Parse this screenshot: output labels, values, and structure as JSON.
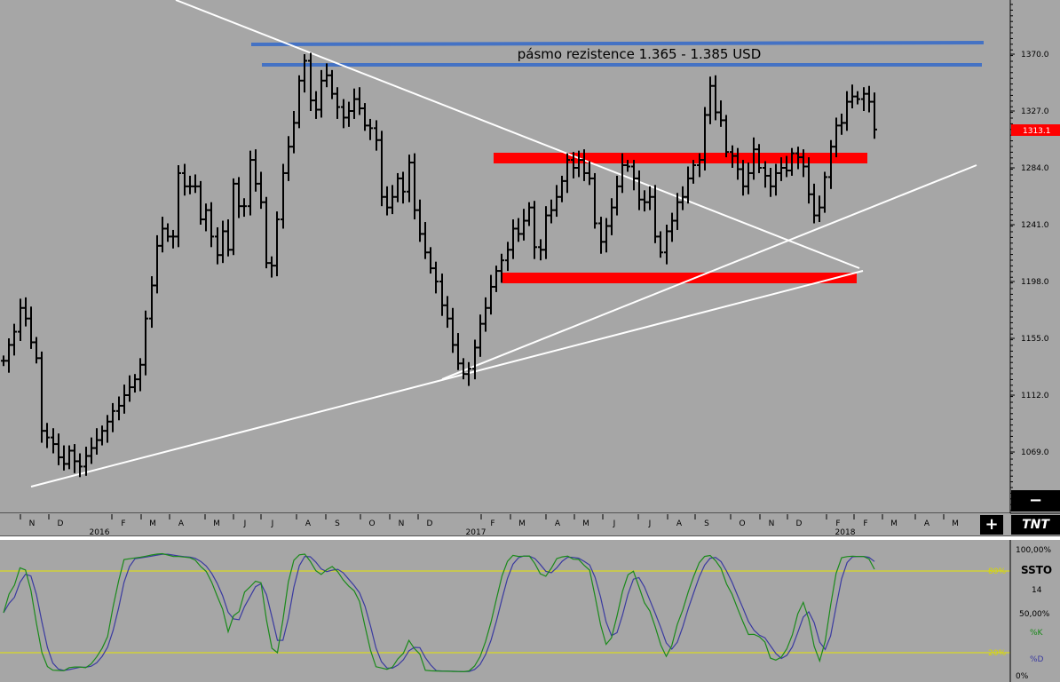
{
  "chart_data": {
    "type": "ohlc",
    "price_axis": {
      "ticks": [
        "1370.0",
        "1327.0",
        "1284.0",
        "1241.0",
        "1198.0",
        "1155.0",
        "1112.0",
        "1069.0"
      ],
      "tick_values": [
        1370,
        1327,
        1284,
        1241,
        1198,
        1155,
        1112,
        1069
      ],
      "current_price": "1313.1",
      "range": [
        1040,
        1410
      ]
    },
    "time_axis": {
      "months": [
        "N",
        "D",
        "F",
        "M",
        "A",
        "M",
        "J",
        "J",
        "A",
        "S",
        "O",
        "N",
        "D",
        "F",
        "M",
        "A",
        "M",
        "J",
        "J",
        "A",
        "S",
        "O",
        "N",
        "D",
        "F",
        "F",
        "M",
        "A",
        "M"
      ],
      "years": [
        "2016",
        "2017",
        "2018"
      ]
    },
    "annotation": "pásmo rezistence 1.365 - 1.385 USD",
    "weekly_closes": [
      1138,
      1150,
      1160,
      1178,
      1170,
      1152,
      1140,
      1085,
      1080,
      1075,
      1065,
      1060,
      1070,
      1062,
      1058,
      1066,
      1072,
      1078,
      1085,
      1092,
      1100,
      1104,
      1112,
      1118,
      1124,
      1135,
      1170,
      1195,
      1225,
      1238,
      1232,
      1232,
      1280,
      1270,
      1270,
      1270,
      1245,
      1252,
      1232,
      1218,
      1236,
      1222,
      1272,
      1255,
      1255,
      1290,
      1272,
      1258,
      1212,
      1210,
      1245,
      1280,
      1300,
      1318,
      1350,
      1365,
      1335,
      1328,
      1350,
      1354,
      1340,
      1330,
      1322,
      1327,
      1336,
      1329,
      1316,
      1314,
      1305,
      1262,
      1254,
      1262,
      1276,
      1266,
      1288,
      1252,
      1234,
      1220,
      1208,
      1198,
      1180,
      1170,
      1150,
      1136,
      1128,
      1132,
      1148,
      1166,
      1178,
      1194,
      1206,
      1214,
      1222,
      1238,
      1234,
      1244,
      1254,
      1224,
      1222,
      1248,
      1252,
      1262,
      1274,
      1290,
      1284,
      1290,
      1280,
      1276,
      1242,
      1228,
      1240,
      1254,
      1270,
      1286,
      1285,
      1276,
      1260,
      1258,
      1262,
      1232,
      1220,
      1236,
      1244,
      1258,
      1262,
      1276,
      1286,
      1290,
      1324,
      1346,
      1326,
      1320,
      1296,
      1293,
      1283,
      1270,
      1280,
      1298,
      1284,
      1278,
      1270,
      1280,
      1284,
      1282,
      1295,
      1292,
      1285,
      1264,
      1248,
      1254,
      1277,
      1300,
      1316,
      1318,
      1334,
      1338,
      1336,
      1340,
      1334,
      1313
    ],
    "stochastic": {
      "name": "SSTO",
      "period": "14",
      "levels": [
        "100,00%",
        "80%",
        "50,00%",
        "20%",
        "0%"
      ],
      "k_label": "%K",
      "d_label": "%D"
    }
  },
  "ui": {
    "minus_button": "−",
    "plus_button": "+",
    "logo": "TNT"
  },
  "colors": {
    "background": "#a6a6a6",
    "bars": "#000000",
    "resistance_lines": "#4472c4",
    "support_zones": "#ff0000",
    "trendlines": "#ffffff",
    "stoch_k": "#1a8a1a",
    "stoch_d": "#3a3aa0",
    "stoch_levels": "#e5e500"
  }
}
